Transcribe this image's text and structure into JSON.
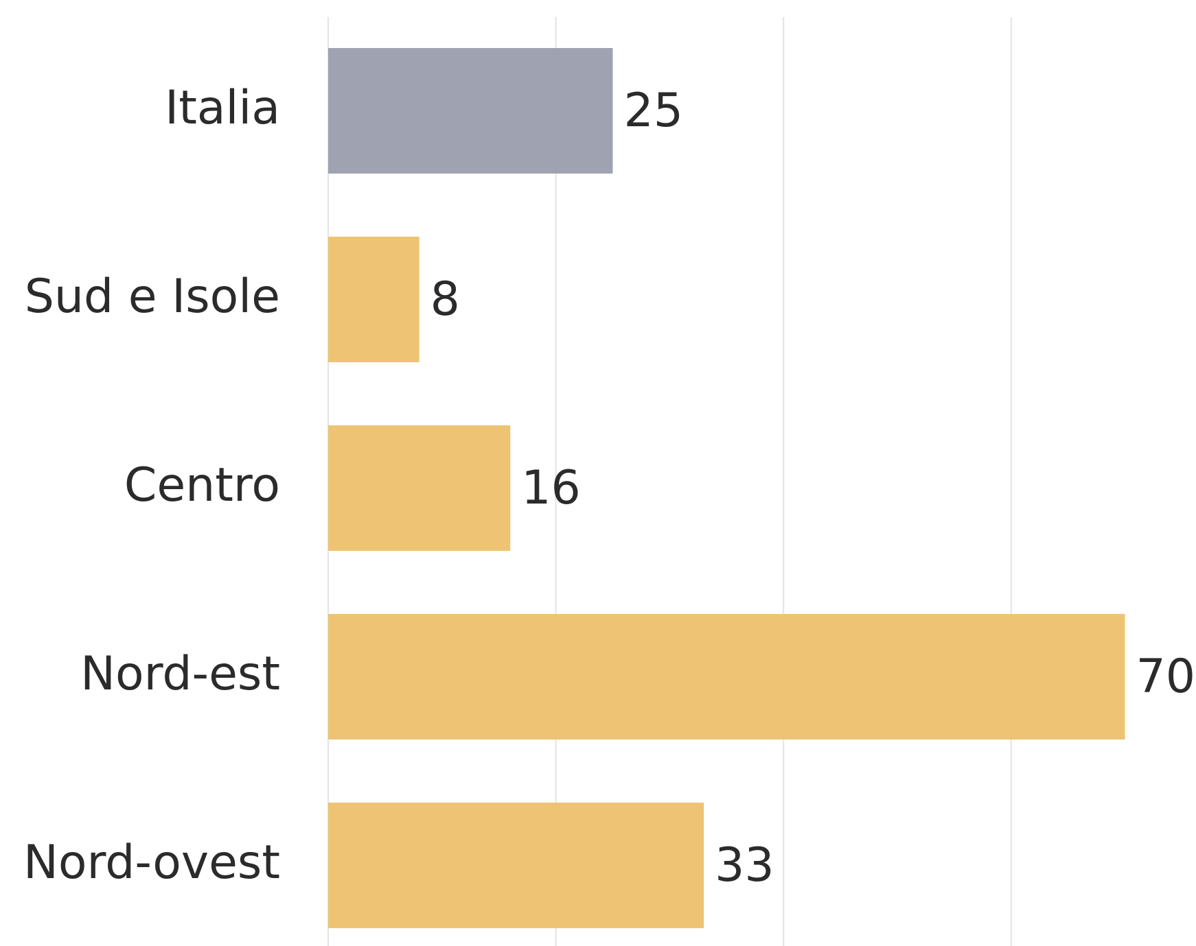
{
  "chart_data": {
    "type": "bar",
    "orientation": "horizontal",
    "categories": [
      "Italia",
      "Sud e Isole",
      "Centro",
      "Nord-est",
      "Nord-ovest"
    ],
    "values": [
      25,
      8,
      16,
      70,
      33
    ],
    "colors": [
      "#9fa3b1",
      "#eec373",
      "#eec373",
      "#eec373",
      "#eec373"
    ],
    "xlim": [
      0,
      76
    ],
    "xticks": [
      0,
      20,
      40,
      60
    ],
    "grid": true
  }
}
